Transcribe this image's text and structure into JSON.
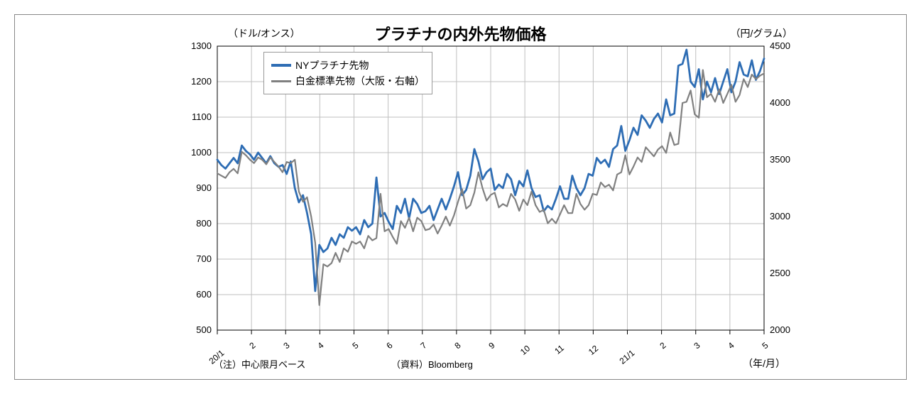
{
  "chart": {
    "type": "line-dual-axis",
    "title": "プラチナの内外先物価格",
    "title_fontsize": 22,
    "left_unit": "（ドル/オンス）",
    "right_unit": "（円/グラム）",
    "x_axis_label": "（年/月）",
    "note": "（注）中心限月ベース",
    "source": "（資料）Bloomberg",
    "background_color": "#ffffff",
    "border_color": "#888888",
    "grid_color": "#bfbfbf",
    "left_axis": {
      "min": 500,
      "max": 1300,
      "step": 100
    },
    "right_axis": {
      "min": 2000,
      "max": 4500,
      "step": 500
    },
    "left_ticks": [
      500,
      600,
      700,
      800,
      900,
      1000,
      1100,
      1200,
      1300
    ],
    "right_ticks": [
      2000,
      2500,
      3000,
      3500,
      4000,
      4500
    ],
    "x_categories": [
      "20/1",
      "2",
      "3",
      "4",
      "5",
      "6",
      "7",
      "8",
      "9",
      "10",
      "11",
      "12",
      "21/1",
      "2",
      "3",
      "4",
      "5"
    ],
    "series": [
      {
        "name": "NYプラチナ先物",
        "color": "#2e6db4",
        "line_width": 2.8,
        "axis": "left",
        "values": [
          980,
          965,
          955,
          970,
          985,
          970,
          1020,
          1005,
          995,
          980,
          1000,
          985,
          970,
          990,
          970,
          960,
          965,
          940,
          975,
          900,
          860,
          880,
          830,
          770,
          610,
          740,
          720,
          730,
          760,
          740,
          770,
          760,
          790,
          780,
          790,
          770,
          810,
          790,
          800,
          930,
          820,
          830,
          805,
          785,
          850,
          830,
          870,
          815,
          870,
          855,
          830,
          835,
          850,
          810,
          840,
          870,
          840,
          870,
          905,
          945,
          880,
          895,
          935,
          1010,
          975,
          925,
          945,
          955,
          895,
          910,
          900,
          940,
          925,
          880,
          920,
          905,
          950,
          900,
          875,
          880,
          835,
          850,
          840,
          870,
          905,
          870,
          870,
          935,
          900,
          880,
          900,
          940,
          935,
          985,
          970,
          980,
          960,
          1010,
          1020,
          1075,
          1005,
          1035,
          1070,
          1050,
          1105,
          1090,
          1070,
          1095,
          1110,
          1085,
          1150,
          1105,
          1110,
          1245,
          1250,
          1290,
          1200,
          1185,
          1235,
          1150,
          1200,
          1170,
          1210,
          1165,
          1200,
          1235,
          1170,
          1200,
          1255,
          1220,
          1215,
          1260,
          1205,
          1230,
          1265
        ]
      },
      {
        "name": "白金標準先物（大阪・右軸）",
        "color": "#808080",
        "line_width": 2.2,
        "axis": "right",
        "values": [
          3380,
          3360,
          3340,
          3390,
          3420,
          3380,
          3570,
          3540,
          3500,
          3470,
          3520,
          3500,
          3460,
          3520,
          3480,
          3440,
          3390,
          3480,
          3470,
          3500,
          3220,
          3130,
          3170,
          3000,
          2770,
          2220,
          2580,
          2560,
          2590,
          2680,
          2600,
          2720,
          2690,
          2780,
          2760,
          2780,
          2720,
          2830,
          2790,
          2810,
          3200,
          2870,
          2890,
          2820,
          2760,
          2960,
          2900,
          2990,
          2870,
          2990,
          2960,
          2880,
          2890,
          2930,
          2850,
          2920,
          3000,
          2920,
          3010,
          3130,
          3240,
          3070,
          3100,
          3210,
          3390,
          3250,
          3140,
          3190,
          3210,
          3080,
          3110,
          3090,
          3200,
          3150,
          3050,
          3150,
          3100,
          3220,
          3100,
          3040,
          3060,
          2940,
          2980,
          2940,
          3020,
          3100,
          3030,
          3030,
          3200,
          3110,
          3060,
          3100,
          3200,
          3190,
          3300,
          3260,
          3280,
          3230,
          3370,
          3390,
          3540,
          3370,
          3440,
          3520,
          3480,
          3610,
          3570,
          3530,
          3590,
          3620,
          3560,
          3740,
          3630,
          3640,
          4000,
          4010,
          4110,
          3900,
          3870,
          4290,
          4050,
          4080,
          4010,
          4120,
          4000,
          4080,
          4160,
          4010,
          4070,
          4210,
          4140,
          4250,
          4210,
          4240,
          4260
        ]
      }
    ],
    "legend": {
      "position": "top-left-inside",
      "border_color": "#999999",
      "fontsize": 14
    }
  }
}
